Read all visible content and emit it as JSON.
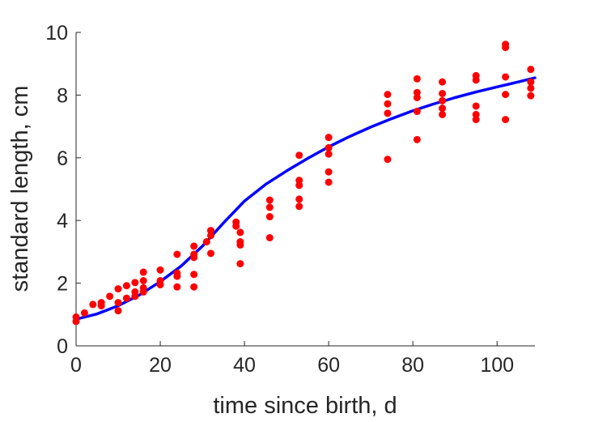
{
  "chart_data": {
    "type": "scatter",
    "title": "",
    "xlabel": "time since birth, d",
    "ylabel": "standard length, cm",
    "xlim": [
      0,
      109
    ],
    "ylim": [
      0,
      10
    ],
    "xticks": [
      0,
      20,
      40,
      60,
      80,
      100
    ],
    "yticks": [
      0,
      2,
      4,
      6,
      8,
      10
    ],
    "grid": false,
    "legend": "none",
    "series": [
      {
        "type": "scatter",
        "color": "#ff0000",
        "points": [
          [
            0,
            0.92
          ],
          [
            0,
            0.78
          ],
          [
            2,
            1.05
          ],
          [
            4,
            1.32
          ],
          [
            6,
            1.38
          ],
          [
            6,
            1.28
          ],
          [
            8,
            1.58
          ],
          [
            10,
            1.82
          ],
          [
            10,
            1.38
          ],
          [
            10,
            1.12
          ],
          [
            12,
            1.92
          ],
          [
            12,
            1.52
          ],
          [
            14,
            2.02
          ],
          [
            14,
            1.72
          ],
          [
            14,
            1.58
          ],
          [
            16,
            2.35
          ],
          [
            16,
            2.08
          ],
          [
            16,
            1.85
          ],
          [
            16,
            1.72
          ],
          [
            20,
            2.42
          ],
          [
            20,
            2.08
          ],
          [
            20,
            1.95
          ],
          [
            24,
            2.92
          ],
          [
            24,
            2.32
          ],
          [
            24,
            2.22
          ],
          [
            24,
            1.88
          ],
          [
            28,
            3.18
          ],
          [
            28,
            2.92
          ],
          [
            28,
            2.82
          ],
          [
            28,
            2.28
          ],
          [
            28,
            1.88
          ],
          [
            31,
            3.32
          ],
          [
            32,
            3.68
          ],
          [
            32,
            3.52
          ],
          [
            32,
            2.95
          ],
          [
            38,
            3.95
          ],
          [
            38,
            3.82
          ],
          [
            39,
            3.62
          ],
          [
            39,
            3.32
          ],
          [
            39,
            3.22
          ],
          [
            39,
            2.62
          ],
          [
            46,
            4.65
          ],
          [
            46,
            4.42
          ],
          [
            46,
            4.12
          ],
          [
            46,
            3.45
          ],
          [
            53,
            6.08
          ],
          [
            53,
            5.28
          ],
          [
            53,
            5.12
          ],
          [
            53,
            4.68
          ],
          [
            53,
            4.45
          ],
          [
            60,
            6.65
          ],
          [
            60,
            6.32
          ],
          [
            60,
            6.12
          ],
          [
            60,
            5.55
          ],
          [
            60,
            5.22
          ],
          [
            74,
            8.02
          ],
          [
            74,
            7.72
          ],
          [
            74,
            7.42
          ],
          [
            74,
            5.95
          ],
          [
            81,
            8.52
          ],
          [
            81,
            8.08
          ],
          [
            81,
            7.92
          ],
          [
            81,
            7.48
          ],
          [
            81,
            6.58
          ],
          [
            87,
            8.42
          ],
          [
            87,
            8.05
          ],
          [
            87,
            7.82
          ],
          [
            87,
            7.58
          ],
          [
            87,
            7.38
          ],
          [
            95,
            8.62
          ],
          [
            95,
            8.48
          ],
          [
            95,
            7.65
          ],
          [
            95,
            7.38
          ],
          [
            95,
            7.22
          ],
          [
            102,
            9.62
          ],
          [
            102,
            9.52
          ],
          [
            102,
            8.58
          ],
          [
            102,
            8.02
          ],
          [
            102,
            7.22
          ],
          [
            108,
            8.82
          ],
          [
            108,
            8.42
          ],
          [
            108,
            8.22
          ],
          [
            108,
            7.98
          ]
        ]
      },
      {
        "type": "line",
        "color": "#0000ff",
        "points": [
          [
            0,
            0.85
          ],
          [
            5,
            1.02
          ],
          [
            10,
            1.28
          ],
          [
            15,
            1.62
          ],
          [
            20,
            2.05
          ],
          [
            25,
            2.55
          ],
          [
            30,
            3.18
          ],
          [
            35,
            3.92
          ],
          [
            40,
            4.62
          ],
          [
            45,
            5.15
          ],
          [
            50,
            5.58
          ],
          [
            55,
            5.98
          ],
          [
            60,
            6.35
          ],
          [
            65,
            6.68
          ],
          [
            70,
            6.98
          ],
          [
            75,
            7.25
          ],
          [
            80,
            7.5
          ],
          [
            85,
            7.72
          ],
          [
            90,
            7.92
          ],
          [
            95,
            8.1
          ],
          [
            100,
            8.26
          ],
          [
            105,
            8.42
          ],
          [
            109,
            8.55
          ]
        ]
      }
    ]
  }
}
